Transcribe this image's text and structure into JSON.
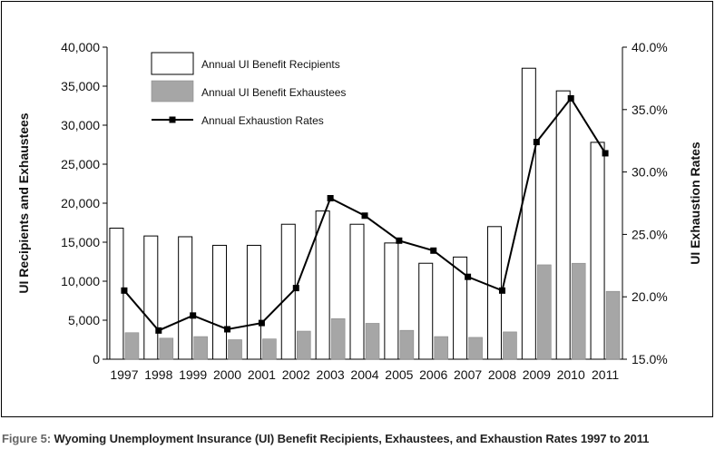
{
  "caption": {
    "prefix": "Figure 5:",
    "text": " Wyoming Unemployment Insurance (UI) Benefit Recipients, Exhaustees, and Exhaustion Rates 1997 to 2011"
  },
  "colors": {
    "recipients_fill": "#ffffff",
    "exhaustees_fill": "#a6a6a6",
    "line": "#000000"
  },
  "chart_data": {
    "type": "bar",
    "categories": [
      "1997",
      "1998",
      "1999",
      "2000",
      "2001",
      "2002",
      "2003",
      "2004",
      "2005",
      "2006",
      "2007",
      "2008",
      "2009",
      "2010",
      "2011"
    ],
    "series": [
      {
        "name": "Annual UI Benefit Recipients",
        "type": "bar",
        "axis": "left",
        "values": [
          16800,
          15800,
          15700,
          14600,
          14600,
          17300,
          19000,
          17300,
          14900,
          12300,
          13100,
          17000,
          37300,
          34400,
          27800
        ]
      },
      {
        "name": "Annual UI Benefit Exhaustees",
        "type": "bar",
        "axis": "left",
        "values": [
          3400,
          2700,
          2900,
          2500,
          2600,
          3600,
          5200,
          4600,
          3700,
          2900,
          2800,
          3500,
          12100,
          12300,
          8700
        ]
      },
      {
        "name": "Annual Exhaustion Rates",
        "type": "line",
        "axis": "right",
        "values": [
          20.5,
          17.3,
          18.5,
          17.4,
          17.9,
          20.7,
          27.9,
          26.5,
          24.5,
          23.7,
          21.6,
          20.5,
          32.4,
          35.9,
          31.5
        ]
      }
    ],
    "ylabel_left": "UI Recipients and Exhaustees",
    "ylabel_right": "UI Exhaustion Rates",
    "ylim_left": [
      0,
      40000
    ],
    "ylim_right": [
      15.0,
      40.0
    ],
    "yticks_left": [
      "0",
      "5,000",
      "10,000",
      "15,000",
      "20,000",
      "25,000",
      "30,000",
      "35,000",
      "40,000"
    ],
    "yticks_right": [
      "15.0%",
      "20.0%",
      "25.0%",
      "30.0%",
      "35.0%",
      "40.0%"
    ],
    "grid": false,
    "legend_position": "top-left"
  }
}
